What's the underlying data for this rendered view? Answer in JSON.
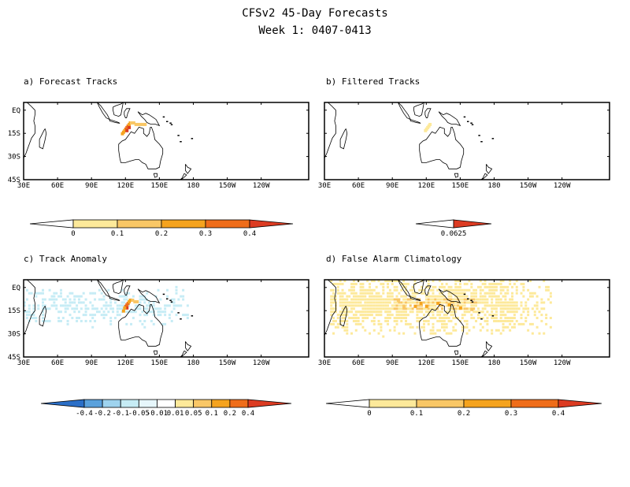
{
  "figure": {
    "title": "CFSv2 45-Day Forecasts",
    "subtitle": "Week 1: 0407-0413"
  },
  "colors": {
    "map_outline": "#000000",
    "yellow_light": "#fde99a",
    "orange_light": "#f9c766",
    "orange": "#f5a31e",
    "orange_dark": "#ef6d1a",
    "red": "#dc3b22",
    "cyan_light": "#c6ecf5",
    "blue_light": "#9ed3ee",
    "blue": "#5aa1dc",
    "blue_dark": "#2b6fc7"
  },
  "chart_data": [
    {
      "type": "heatmap",
      "title": "a) Forecast Tracks",
      "x_ticks": [
        "30E",
        "60E",
        "90E",
        "120E",
        "150E",
        "180",
        "150W",
        "120W"
      ],
      "y_ticks": [
        "EQ",
        "15S",
        "30S",
        "45S"
      ],
      "colorbar": {
        "labels": [
          "0",
          "0.1",
          "0.2",
          "0.3",
          "0.4"
        ],
        "colors": [
          "#fde99a",
          "#f9c766",
          "#f5a31e",
          "#ef6d1a",
          "#dc3b22"
        ]
      },
      "features": [
        {
          "lon": 120,
          "lat": -12,
          "value": 0.3
        },
        {
          "lon": 121,
          "lat": -11,
          "value": 0.3
        },
        {
          "lon": 122,
          "lat": -10,
          "value": 0.3
        },
        {
          "lon": 123,
          "lat": -9,
          "value": 0.2
        },
        {
          "lon": 124,
          "lat": -8,
          "value": 0.2
        },
        {
          "lon": 125,
          "lat": -8,
          "value": 0.1
        },
        {
          "lon": 127,
          "lat": -8,
          "value": 0.1
        },
        {
          "lon": 129,
          "lat": -9,
          "value": 0.1
        },
        {
          "lon": 131,
          "lat": -9,
          "value": 0.1
        },
        {
          "lon": 133,
          "lat": -9,
          "value": 0.1
        },
        {
          "lon": 135,
          "lat": -9,
          "value": 0.1
        },
        {
          "lon": 137,
          "lat": -9,
          "value": 0.1
        },
        {
          "lon": 119,
          "lat": -13,
          "value": 0.2
        },
        {
          "lon": 118,
          "lat": -14,
          "value": 0.2
        },
        {
          "lon": 117,
          "lat": -15,
          "value": 0.2
        },
        {
          "lon": 121,
          "lat": -13,
          "value": 0.4
        },
        {
          "lon": 123,
          "lat": -11,
          "value": 0.4
        }
      ]
    },
    {
      "type": "heatmap",
      "title": "b) Filtered Tracks",
      "x_ticks": [
        "30E",
        "60E",
        "90E",
        "120E",
        "150E",
        "180",
        "150W",
        "120W"
      ],
      "y_ticks": [],
      "colorbar": {
        "labels": [
          "0.0625"
        ],
        "colors": [
          "#dc3b22"
        ]
      },
      "features": [
        {
          "lon": 120,
          "lat": -12,
          "value": 0.0625
        },
        {
          "lon": 121,
          "lat": -11,
          "value": 0.0625
        },
        {
          "lon": 122,
          "lat": -10,
          "value": 0.0625
        },
        {
          "lon": 123,
          "lat": -9,
          "value": 0.0625
        },
        {
          "lon": 119,
          "lat": -13,
          "value": 0.0625
        }
      ]
    },
    {
      "type": "heatmap",
      "title": "c) Track Anomaly",
      "x_ticks": [
        "30E",
        "60E",
        "90E",
        "120E",
        "150E",
        "180",
        "150W",
        "120W"
      ],
      "y_ticks": [
        "EQ",
        "15S",
        "30S",
        "45S"
      ],
      "colorbar": {
        "labels": [
          "-0.4",
          "-0.2",
          "-0.1",
          "-0.05",
          "-0.01",
          "0.01",
          "0.05",
          "0.1",
          "0.2",
          "0.4"
        ],
        "colors": [
          "#2b6fc7",
          "#5aa1dc",
          "#9ed3ee",
          "#c6ecf5",
          "#e6f6fb",
          "#ffffff",
          "#fde99a",
          "#f9c766",
          "#f5a31e",
          "#ef6d1a",
          "#dc3b22"
        ]
      },
      "features": [
        {
          "lon": 120,
          "lat": -12,
          "value": 0.2
        },
        {
          "lon": 121,
          "lat": -11,
          "value": 0.2
        },
        {
          "lon": 122,
          "lat": -10,
          "value": 0.2
        },
        {
          "lon": 123,
          "lat": -9,
          "value": 0.1
        },
        {
          "lon": 124,
          "lat": -8,
          "value": 0.1
        },
        {
          "lon": 126,
          "lat": -8,
          "value": 0.05
        },
        {
          "lon": 128,
          "lat": -9,
          "value": 0.05
        },
        {
          "lon": 130,
          "lat": -9,
          "value": 0.05
        },
        {
          "lon": 121,
          "lat": -13,
          "value": 0.4
        },
        {
          "lon": 119,
          "lat": -13,
          "value": 0.1
        },
        {
          "lon": 118,
          "lat": -15,
          "value": 0.1
        }
      ],
      "negative_region": {
        "lon": [
          30,
          175
        ],
        "lat": [
          -25,
          5
        ],
        "value": -0.01
      }
    },
    {
      "type": "heatmap",
      "title": "d) False Alarm Climatology",
      "x_ticks": [
        "30E",
        "60E",
        "90E",
        "120E",
        "150E",
        "180",
        "150W",
        "120W"
      ],
      "y_ticks": [],
      "colorbar": {
        "labels": [
          "0",
          "0.1",
          "0.2",
          "0.3",
          "0.4"
        ],
        "colors": [
          "#fde99a",
          "#f9c766",
          "#f5a31e",
          "#ef6d1a",
          "#dc3b22"
        ]
      },
      "broad_region": {
        "lon": [
          35,
          230
        ],
        "lat": [
          -35,
          5
        ],
        "value": 0.05
      },
      "features": [
        {
          "lon": 115,
          "lat": -10,
          "value": 0.2
        },
        {
          "lon": 110,
          "lat": -12,
          "value": 0.2
        },
        {
          "lon": 120,
          "lat": -12,
          "value": 0.2
        },
        {
          "lon": 130,
          "lat": -10,
          "value": 0.2
        },
        {
          "lon": 140,
          "lat": -11,
          "value": 0.2
        },
        {
          "lon": 150,
          "lat": -13,
          "value": 0.2
        },
        {
          "lon": 95,
          "lat": -8,
          "value": 0.1
        },
        {
          "lon": 100,
          "lat": -12,
          "value": 0.1
        },
        {
          "lon": 160,
          "lat": -14,
          "value": 0.1
        }
      ]
    }
  ]
}
